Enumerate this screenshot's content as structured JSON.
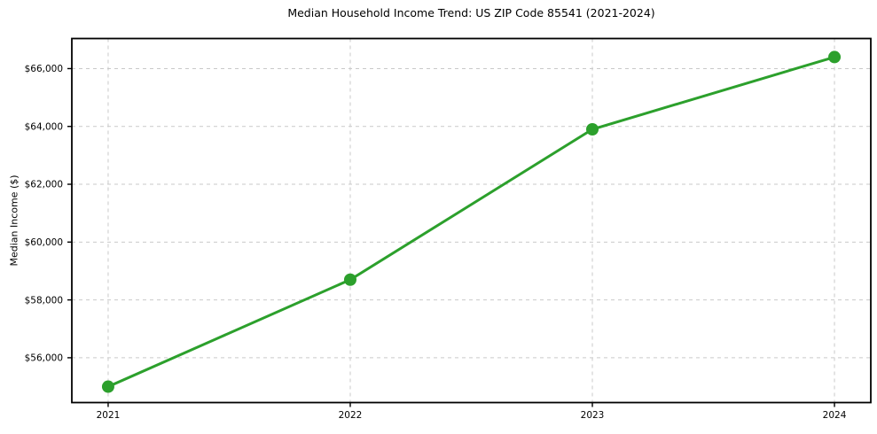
{
  "chart_data": {
    "type": "line",
    "title": "Median Household Income Trend: US ZIP Code 85541 (2021-2024)",
    "xlabel": "",
    "ylabel": "Median Income ($)",
    "x": [
      2021,
      2022,
      2023,
      2024
    ],
    "x_tick_labels": [
      "2021",
      "2022",
      "2023",
      "2024"
    ],
    "values": [
      55000,
      58700,
      63900,
      66400
    ],
    "y_ticks": [
      56000,
      58000,
      60000,
      62000,
      64000,
      66000
    ],
    "y_tick_labels": [
      "$56,000",
      "$58,000",
      "$60,000",
      "$62,000",
      "$64,000",
      "$66,000"
    ],
    "xlim": [
      2020.85,
      2024.15
    ],
    "ylim": [
      54450,
      67040
    ],
    "grid": true,
    "legend_position": "none",
    "style": {
      "line_color": "#2ca02c",
      "marker": "circle",
      "marker_radius": 7,
      "line_width": 3,
      "grid_color": "#c9c9c9",
      "grid_dash": "4 4",
      "spine_color": "#000000",
      "spine_width": 1.8,
      "background": "#ffffff",
      "text_color": "#000000"
    }
  }
}
